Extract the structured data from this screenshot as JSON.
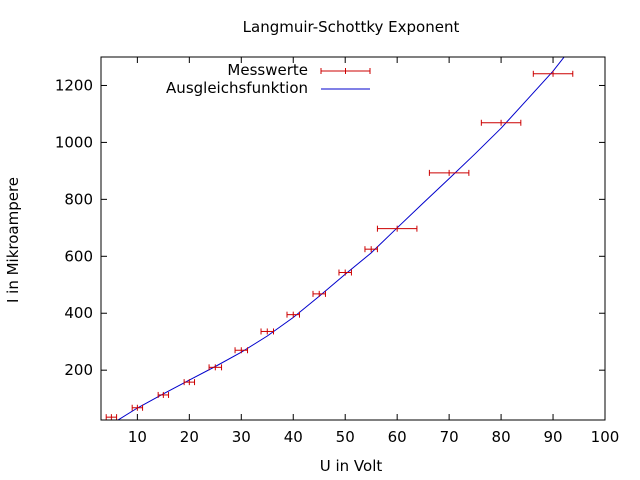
{
  "chart_data": {
    "type": "scatter",
    "title": "Langmuir-Schottky Exponent",
    "xlabel": "U in Volt",
    "ylabel": "I in Mikroampere",
    "xlim": [
      3,
      100
    ],
    "ylim": [
      25,
      1300
    ],
    "xticks": [
      10,
      20,
      30,
      40,
      50,
      60,
      70,
      80,
      90,
      100
    ],
    "yticks": [
      200,
      400,
      600,
      800,
      1000,
      1200
    ],
    "legend_position": "top",
    "grid": false,
    "series": [
      {
        "name": "Messwerte",
        "kind": "points-with-x-error",
        "color": "#cc0000",
        "points": [
          {
            "x": 5,
            "y": 35,
            "xerr": 1
          },
          {
            "x": 10,
            "y": 68,
            "xerr": 1
          },
          {
            "x": 15,
            "y": 113,
            "xerr": 1
          },
          {
            "x": 20,
            "y": 158,
            "xerr": 1
          },
          {
            "x": 25,
            "y": 210,
            "xerr": 1.2
          },
          {
            "x": 30,
            "y": 270,
            "xerr": 1.2
          },
          {
            "x": 35,
            "y": 336,
            "xerr": 1.2
          },
          {
            "x": 40,
            "y": 395,
            "xerr": 1.2
          },
          {
            "x": 45,
            "y": 468,
            "xerr": 1.2
          },
          {
            "x": 50,
            "y": 543,
            "xerr": 1.2
          },
          {
            "x": 55,
            "y": 625,
            "xerr": 1.2
          },
          {
            "x": 60,
            "y": 697,
            "xerr": 3.8
          },
          {
            "x": 70,
            "y": 893,
            "xerr": 3.8
          },
          {
            "x": 80,
            "y": 1069,
            "xerr": 3.8
          },
          {
            "x": 90,
            "y": 1241,
            "xerr": 3.8
          }
        ]
      },
      {
        "name": "Ausgleichsfunktion",
        "kind": "line",
        "color": "#0000cc",
        "x": [
          3,
          6,
          10,
          15,
          20,
          25,
          30,
          35,
          40,
          45,
          50,
          55,
          60,
          65,
          70,
          75,
          80,
          85,
          90,
          93
        ],
        "y": [
          -10,
          22,
          67,
          117,
          165,
          213,
          263,
          320,
          385,
          460,
          537,
          612,
          700,
          787,
          873,
          960,
          1050,
          1150,
          1250,
          1320
        ]
      }
    ]
  }
}
